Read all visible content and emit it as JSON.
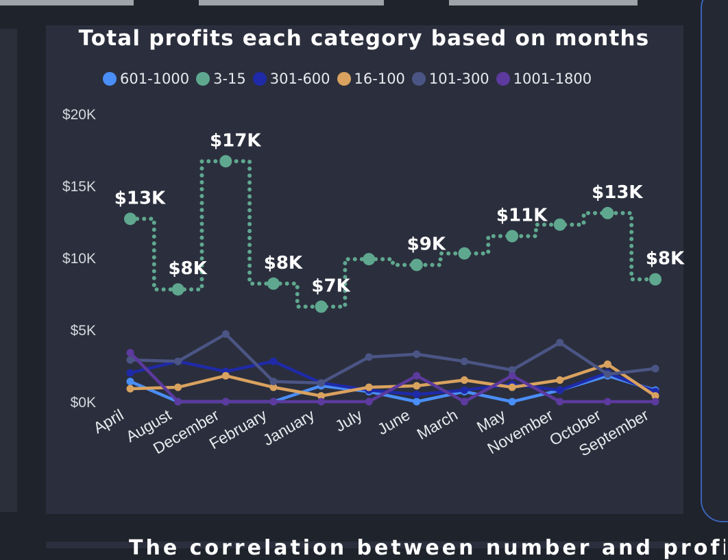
{
  "page": {
    "bottom_text": "The correlation between number and profit based"
  },
  "chart_data": {
    "type": "line",
    "title": "Total profits each category based on months",
    "categories": [
      "April",
      "August",
      "December",
      "February",
      "January",
      "July",
      "June",
      "March",
      "May",
      "November",
      "October",
      "September"
    ],
    "ylim": [
      0,
      20000
    ],
    "yticks": [
      {
        "value": 0,
        "label": "$0K"
      },
      {
        "value": 5000,
        "label": "$5K"
      },
      {
        "value": 10000,
        "label": "$10K"
      },
      {
        "value": 15000,
        "label": "$15K"
      },
      {
        "value": 20000,
        "label": "$20K"
      }
    ],
    "legend_position": "top",
    "series": [
      {
        "name": "601-1000",
        "color": "#4a8ef7",
        "values": [
          1400,
          0,
          0,
          0,
          1100,
          700,
          0,
          700,
          0,
          800,
          1800,
          800
        ]
      },
      {
        "name": "3-15",
        "color": "#5fa88f",
        "style": "step-dotted",
        "values": [
          12700,
          7800,
          16700,
          8200,
          6600,
          9900,
          9500,
          10300,
          11500,
          12300,
          13100,
          8500
        ],
        "labels": [
          "$13K",
          "$8K",
          "$17K",
          "$8K",
          "$7K",
          "",
          "$9K",
          "",
          "$11K",
          "",
          "$13K",
          "$8K"
        ]
      },
      {
        "name": "301-600",
        "color": "#1f2aa8",
        "values": [
          2000,
          2800,
          2100,
          2800,
          1300,
          800,
          500,
          800,
          1200,
          800,
          2000,
          700
        ]
      },
      {
        "name": "16-100",
        "color": "#d9a25f",
        "values": [
          900,
          1000,
          1800,
          1000,
          400,
          1000,
          1100,
          1500,
          1000,
          1500,
          2600,
          400
        ]
      },
      {
        "name": "101-300",
        "color": "#4b5585",
        "values": [
          2900,
          2800,
          4700,
          1400,
          1300,
          3100,
          3300,
          2800,
          2200,
          4100,
          1900,
          2300
        ]
      },
      {
        "name": "1001-1800",
        "color": "#5c3a9e",
        "values": [
          3400,
          0,
          0,
          0,
          0,
          0,
          1800,
          0,
          1800,
          0,
          0,
          0
        ]
      }
    ]
  }
}
